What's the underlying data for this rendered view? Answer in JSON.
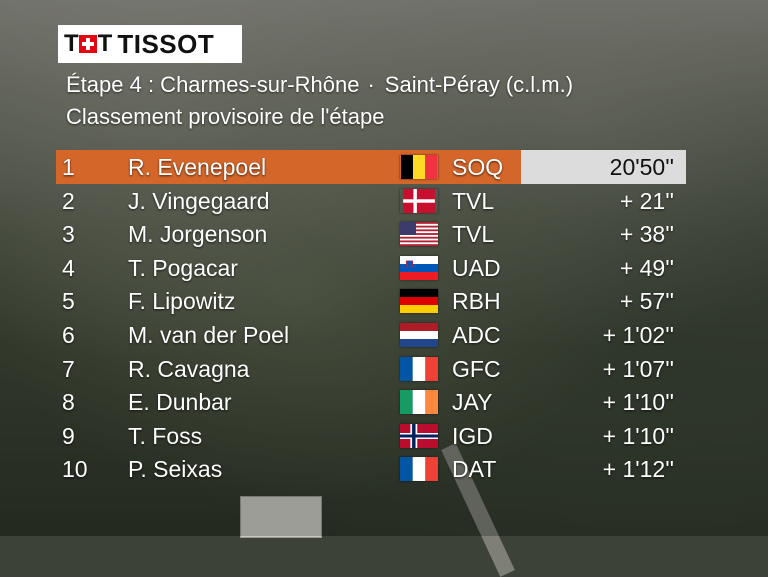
{
  "brand": "TISSOT",
  "header": {
    "stage_label": "Étape 4 : Charmes-sur-Rhône",
    "separator": "·",
    "stage_end": "Saint-Péray (c.l.m.)",
    "subtitle": "Classement provisoire de l'étape"
  },
  "colors": {
    "leader_bg": "#d4662a",
    "leader_time_bg": "#dcdcdc",
    "brand_red": "#e30613"
  },
  "standings": [
    {
      "rank": "1",
      "name": "R. Evenepoel",
      "team": "SOQ",
      "time": "20'50''",
      "flag": "BE"
    },
    {
      "rank": "2",
      "name": "J. Vingegaard",
      "team": "TVL",
      "time": "+ 21''",
      "flag": "DK"
    },
    {
      "rank": "3",
      "name": "M. Jorgenson",
      "team": "TVL",
      "time": "+ 38''",
      "flag": "US"
    },
    {
      "rank": "4",
      "name": "T. Pogacar",
      "team": "UAD",
      "time": "+ 49''",
      "flag": "SI"
    },
    {
      "rank": "5",
      "name": "F. Lipowitz",
      "team": "RBH",
      "time": "+ 57''",
      "flag": "DE"
    },
    {
      "rank": "6",
      "name": "M. van der Poel",
      "team": "ADC",
      "time": "+ 1'02''",
      "flag": "NL"
    },
    {
      "rank": "7",
      "name": "R. Cavagna",
      "team": "GFC",
      "time": "+ 1'07''",
      "flag": "FR"
    },
    {
      "rank": "8",
      "name": "E. Dunbar",
      "team": "JAY",
      "time": "+ 1'10''",
      "flag": "IE"
    },
    {
      "rank": "9",
      "name": "T. Foss",
      "team": "IGD",
      "time": "+ 1'10''",
      "flag": "NO"
    },
    {
      "rank": "10",
      "name": "P. Seixas",
      "team": "DAT",
      "time": "+ 1'12''",
      "flag": "FR"
    }
  ]
}
